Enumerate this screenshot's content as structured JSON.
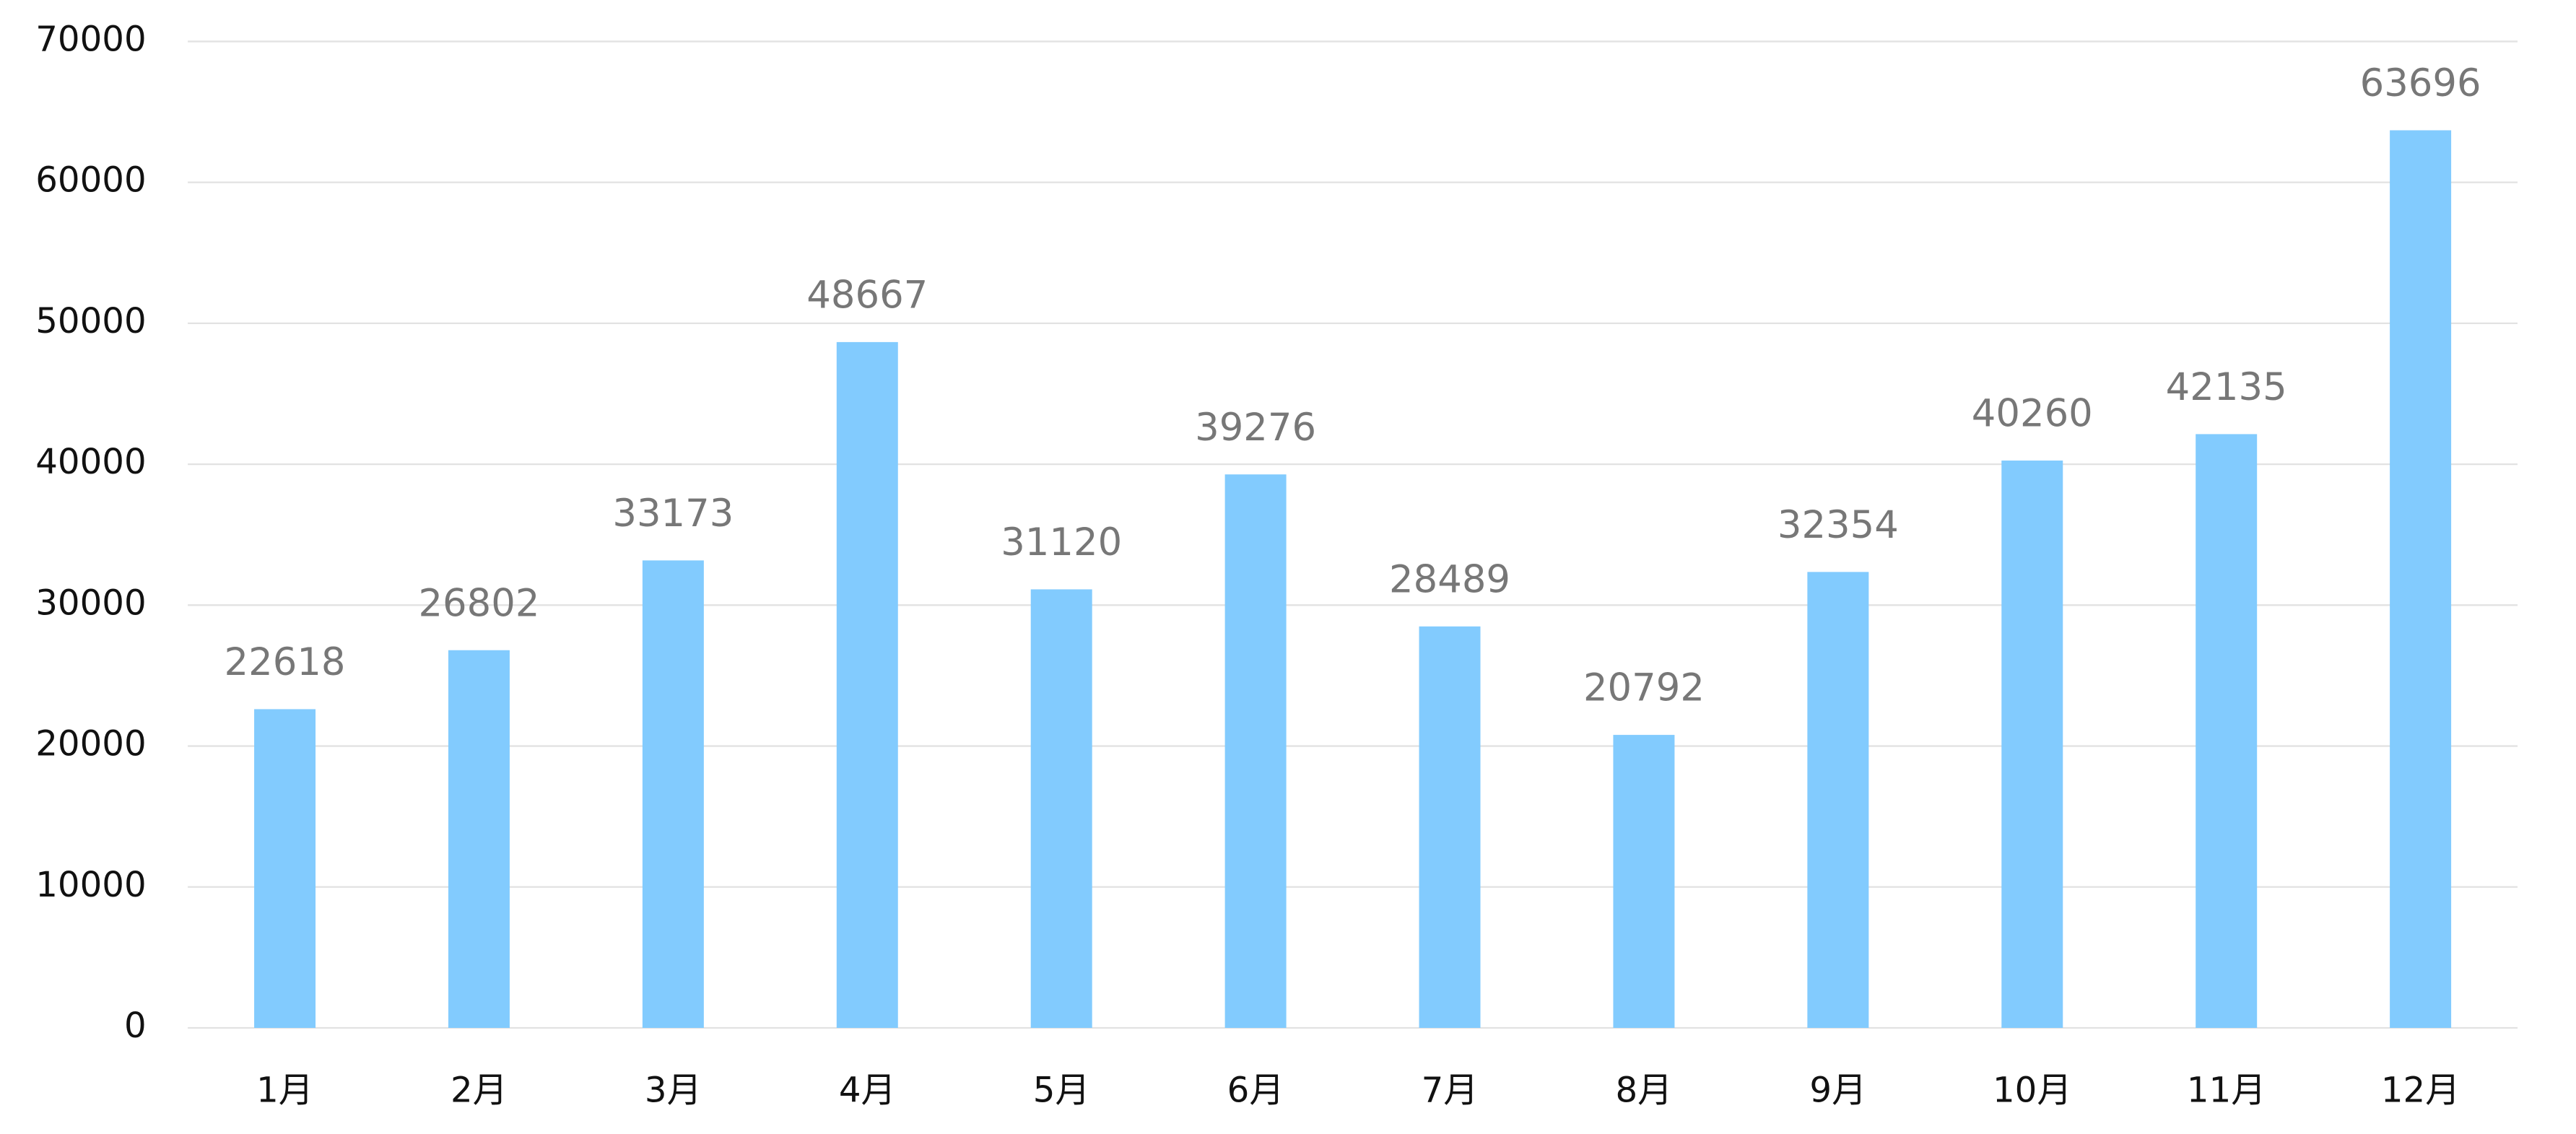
{
  "chart_data": {
    "type": "bar",
    "categories": [
      "1月",
      "2月",
      "3月",
      "4月",
      "5月",
      "6月",
      "7月",
      "8月",
      "9月",
      "10月",
      "11月",
      "12月"
    ],
    "values": [
      22618,
      26802,
      33173,
      48667,
      31120,
      39276,
      28489,
      20792,
      32354,
      40260,
      42135,
      63696
    ],
    "color": "#82cbfe",
    "ylim": [
      0,
      70000
    ],
    "yticks": [
      0,
      10000,
      20000,
      30000,
      40000,
      50000,
      60000,
      70000
    ],
    "grid": true,
    "data_labels": true
  }
}
